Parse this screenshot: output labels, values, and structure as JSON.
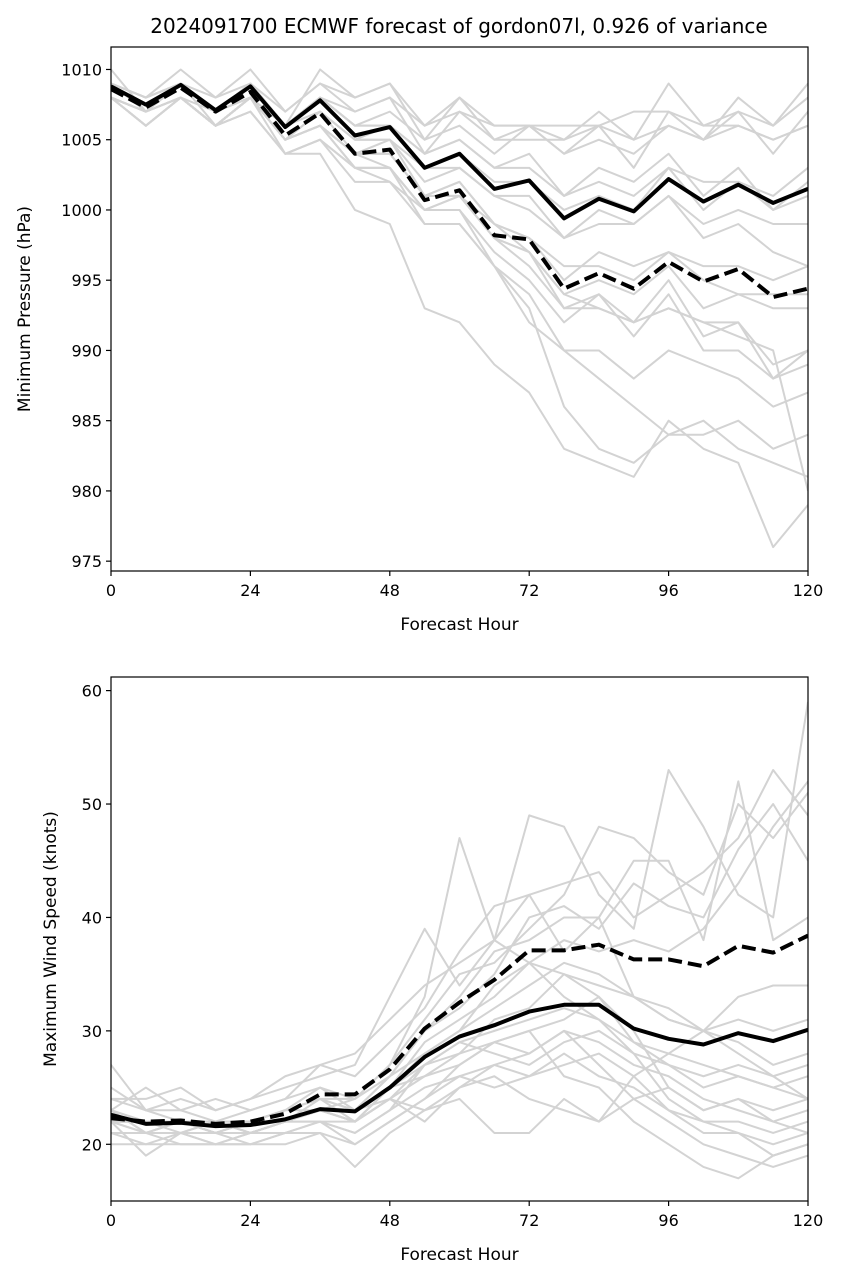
{
  "title": "2024091700 ECMWF forecast of gordon07l, 0.926 of variance",
  "colors": {
    "member": "#d3d3d3",
    "highlight": "#000000"
  },
  "chart_data": [
    {
      "type": "line",
      "panel": "top",
      "xlabel": "Forecast Hour",
      "ylabel": "Minimum Pressure (hPa)",
      "xlim": [
        0,
        120
      ],
      "ylim": [
        974.3,
        1011.6
      ],
      "xticks": [
        0,
        24,
        48,
        72,
        96,
        120
      ],
      "yticks": [
        975,
        980,
        985,
        990,
        995,
        1000,
        1005,
        1010
      ],
      "x": [
        0,
        6,
        12,
        18,
        24,
        30,
        36,
        42,
        48,
        54,
        60,
        66,
        72,
        78,
        84,
        90,
        96,
        102,
        108,
        114,
        120
      ],
      "highlight_series": [
        {
          "style": "solid",
          "values": [
            1008.8,
            1007.5,
            1008.9,
            1007.1,
            1008.8,
            1005.9,
            1007.8,
            1005.3,
            1005.9,
            1003.0,
            1004.0,
            1001.5,
            1002.1,
            999.4,
            1000.8,
            999.9,
            1002.2,
            1000.6,
            1001.8,
            1000.5,
            1001.5
          ]
        },
        {
          "style": "dashed",
          "values": [
            1008.6,
            1007.3,
            1008.7,
            1007.0,
            1008.4,
            1005.3,
            1006.9,
            1004.0,
            1004.3,
            1000.7,
            1001.4,
            998.2,
            997.9,
            994.4,
            995.5,
            994.4,
            996.3,
            994.9,
            995.8,
            993.8,
            994.4
          ]
        }
      ],
      "member_series": [
        [
          1010,
          1007,
          1009,
          1008,
          1010,
          1007,
          1009,
          1007,
          1008,
          1006,
          1007,
          1006,
          1006,
          1005,
          1006,
          1005,
          1006,
          1005,
          1006,
          1005,
          1006
        ],
        [
          1009,
          1008,
          1010,
          1008,
          1009,
          1007,
          1009,
          1008,
          1009,
          1006,
          1008,
          1006,
          1006,
          1006,
          1006,
          1007,
          1007,
          1006,
          1006,
          1005,
          1006
        ],
        [
          1009,
          1008,
          1009,
          1007,
          1009,
          1006,
          1010,
          1008,
          1009,
          1005,
          1008,
          1005,
          1006,
          1004,
          1005,
          1004,
          1006,
          1005,
          1007,
          1004,
          1007
        ],
        [
          1009,
          1008,
          1009,
          1007,
          1009,
          1006,
          1008,
          1007,
          1008,
          1004,
          1007,
          1005,
          1005,
          1005,
          1007,
          1005,
          1009,
          1006,
          1007,
          1006,
          1009
        ],
        [
          1009,
          1008,
          1009,
          1007,
          1009,
          1006,
          1008,
          1006,
          1007,
          1005,
          1006,
          1004,
          1006,
          1004,
          1006,
          1003,
          1007,
          1005,
          1008,
          1006,
          1008
        ],
        [
          1009,
          1007,
          1009,
          1007,
          1009,
          1006,
          1008,
          1006,
          1006,
          1004,
          1005,
          1003,
          1003,
          1001,
          1002,
          1001,
          1003,
          1002,
          1002,
          1001,
          1003
        ],
        [
          1008,
          1007,
          1009,
          1007,
          1008,
          1006,
          1008,
          1006,
          1006,
          1004,
          1005,
          1003,
          1004,
          1001,
          1003,
          1002,
          1004,
          1001,
          1003,
          1000,
          1002
        ],
        [
          1008,
          1007,
          1009,
          1006,
          1008,
          1005,
          1007,
          1005,
          1005,
          1003,
          1004,
          1002,
          1002,
          1000,
          1001,
          1000,
          1003,
          1000,
          1002,
          1000,
          1001
        ],
        [
          1009,
          1008,
          1009,
          1007,
          1008,
          1006,
          1007,
          1005,
          1005,
          1002,
          1003,
          1001,
          1001,
          998,
          1000,
          999,
          1001,
          998,
          999,
          997,
          996
        ],
        [
          1008,
          1007,
          1009,
          1007,
          1008,
          1006,
          1007,
          1005,
          1006,
          1003,
          1003,
          1001,
          1000,
          998,
          999,
          999,
          1001,
          999,
          1000,
          999,
          999
        ],
        [
          1008,
          1007,
          1008,
          1007,
          1008,
          1005,
          1007,
          1004,
          1005,
          1001,
          1002,
          999,
          998,
          995,
          997,
          996,
          997,
          996,
          996,
          995,
          996
        ],
        [
          1008,
          1007,
          1008,
          1006,
          1008,
          1005,
          1006,
          1004,
          1004,
          1001,
          1001,
          999,
          998,
          996,
          996,
          995,
          997,
          995,
          994,
          994,
          994
        ],
        [
          1008,
          1007,
          1008,
          1006,
          1008,
          1005,
          1006,
          1004,
          1003,
          1000,
          1001,
          998,
          997,
          994,
          995,
          994,
          996,
          993,
          994,
          993,
          993
        ],
        [
          1008,
          1007,
          1008,
          1006,
          1008,
          1005,
          1006,
          1003,
          1003,
          1000,
          1000,
          997,
          995,
          992,
          994,
          992,
          995,
          991,
          992,
          989,
          990
        ],
        [
          1008,
          1006,
          1008,
          1006,
          1007,
          1004,
          1005,
          1003,
          1003,
          999,
          999,
          996,
          994,
          990,
          990,
          988,
          990,
          989,
          988,
          986,
          987
        ],
        [
          1008,
          1006,
          1008,
          1006,
          1007,
          1004,
          1005,
          1003,
          1002,
          1000,
          1001,
          998,
          997,
          993,
          994,
          991,
          994,
          990,
          990,
          988,
          990
        ],
        [
          1008,
          1007,
          1008,
          1006,
          1008,
          1005,
          1006,
          1004,
          1004,
          1001,
          1002,
          999,
          997,
          994,
          993,
          992,
          993,
          992,
          992,
          988,
          989
        ],
        [
          1008,
          1007,
          1008,
          1006,
          1008,
          1005,
          1006,
          1003,
          1003,
          1000,
          1000,
          996,
          993,
          986,
          983,
          982,
          984,
          984,
          985,
          983,
          984
        ],
        [
          1008,
          1006,
          1008,
          1006,
          1008,
          1004,
          1004,
          1000,
          999,
          993,
          992,
          989,
          987,
          983,
          982,
          981,
          985,
          983,
          982,
          976,
          979
        ],
        [
          1008,
          1006,
          1008,
          1006,
          1007,
          1004,
          1005,
          1002,
          1002,
          999,
          999,
          996,
          992,
          990,
          988,
          986,
          984,
          985,
          983,
          982,
          981
        ],
        [
          1008,
          1007,
          1008,
          1006,
          1008,
          1005,
          1006,
          1004,
          1004,
          1001,
          1001,
          998,
          996,
          993,
          993,
          992,
          993,
          992,
          991,
          990,
          980
        ]
      ]
    },
    {
      "type": "line",
      "panel": "bottom",
      "xlabel": "Forecast Hour",
      "ylabel": "Maximum Wind Speed (knots)",
      "xlim": [
        0,
        120
      ],
      "ylim": [
        15,
        61.2
      ],
      "xticks": [
        0,
        24,
        48,
        72,
        96,
        120
      ],
      "yticks": [
        20,
        30,
        40,
        50,
        60
      ],
      "x": [
        0,
        6,
        12,
        18,
        24,
        30,
        36,
        42,
        48,
        54,
        60,
        66,
        72,
        78,
        84,
        90,
        96,
        102,
        108,
        114,
        120
      ],
      "highlight_series": [
        {
          "style": "solid",
          "values": [
            22.6,
            21.8,
            21.9,
            21.6,
            21.7,
            22.2,
            23.1,
            22.9,
            25.0,
            27.7,
            29.5,
            30.5,
            31.7,
            32.3,
            32.3,
            30.2,
            29.3,
            28.8,
            29.8,
            29.1,
            30.1
          ]
        },
        {
          "style": "dashed",
          "values": [
            22.3,
            22.0,
            22.1,
            21.8,
            22.0,
            22.7,
            24.4,
            24.4,
            26.6,
            30.2,
            32.5,
            34.5,
            37.1,
            37.1,
            37.6,
            36.3,
            36.3,
            35.7,
            37.5,
            36.9,
            38.4
          ]
        }
      ],
      "member_series": [
        [
          27,
          23,
          22,
          22,
          22,
          23,
          24,
          24,
          27,
          33,
          47,
          38,
          36,
          33,
          31,
          29,
          28,
          27,
          26,
          25,
          24
        ],
        [
          25,
          23,
          24,
          23,
          24,
          25,
          26,
          27,
          33,
          39,
          34,
          38,
          49,
          48,
          42,
          39,
          53,
          48,
          42,
          40,
          59
        ],
        [
          24,
          24,
          25,
          23,
          24,
          26,
          27,
          28,
          31,
          34,
          36,
          38,
          42,
          43,
          44,
          40,
          42,
          44,
          47,
          53,
          49
        ],
        [
          23,
          25,
          23,
          24,
          23,
          24,
          27,
          26,
          29,
          32,
          37,
          41,
          42,
          37,
          40,
          45,
          45,
          38,
          52,
          38,
          40
        ],
        [
          22,
          21,
          22,
          22,
          21,
          22,
          23,
          24,
          27,
          31,
          35,
          36,
          39,
          42,
          48,
          47,
          44,
          42,
          50,
          47,
          51
        ],
        [
          23,
          22,
          22,
          21,
          22,
          23,
          24,
          23,
          26,
          30,
          32,
          35,
          40,
          41,
          39,
          43,
          41,
          40,
          46,
          50,
          45
        ],
        [
          22,
          22,
          21,
          22,
          21,
          22,
          23,
          22,
          25,
          29,
          31,
          33,
          36,
          38,
          37,
          38,
          37,
          39,
          43,
          48,
          52
        ],
        [
          23,
          21,
          22,
          21,
          22,
          23,
          25,
          23,
          26,
          30,
          33,
          37,
          38,
          40,
          40,
          33,
          31,
          30,
          33,
          34,
          34
        ],
        [
          22,
          22,
          22,
          21,
          21,
          22,
          22,
          22,
          25,
          28,
          30,
          32,
          34,
          36,
          35,
          33,
          32,
          30,
          31,
          30,
          31
        ],
        [
          23,
          21,
          21,
          22,
          21,
          22,
          23,
          22,
          24,
          27,
          29,
          30,
          31,
          32,
          31,
          28,
          27,
          26,
          27,
          26,
          27
        ],
        [
          22,
          22,
          22,
          21,
          22,
          23,
          24,
          22,
          25,
          26,
          28,
          29,
          30,
          31,
          33,
          29,
          27,
          25,
          26,
          25,
          26
        ],
        [
          21,
          20,
          21,
          21,
          20,
          21,
          22,
          21,
          23,
          27,
          28,
          31,
          32,
          35,
          33,
          30,
          25,
          23,
          24,
          23,
          24
        ],
        [
          22,
          21,
          21,
          22,
          21,
          22,
          23,
          23,
          24,
          26,
          27,
          29,
          28,
          30,
          29,
          27,
          26,
          24,
          23,
          22,
          23
        ],
        [
          23,
          22,
          22,
          21,
          22,
          22,
          24,
          23,
          25,
          27,
          29,
          28,
          27,
          29,
          30,
          28,
          24,
          22,
          22,
          21,
          22
        ],
        [
          21,
          21,
          21,
          20,
          21,
          22,
          22,
          21,
          23,
          25,
          26,
          27,
          26,
          27,
          28,
          26,
          23,
          22,
          21,
          20,
          21
        ],
        [
          20,
          20,
          20,
          20,
          20,
          21,
          21,
          20,
          22,
          24,
          26,
          25,
          26,
          28,
          26,
          25,
          23,
          21,
          21,
          19,
          20
        ],
        [
          22,
          19,
          21,
          20,
          20,
          20,
          21,
          18,
          21,
          23,
          25,
          27,
          28,
          30,
          27,
          24,
          22,
          20,
          19,
          18,
          19
        ],
        [
          21,
          21,
          20,
          20,
          21,
          21,
          22,
          20,
          22,
          24,
          27,
          29,
          30,
          26,
          25,
          22,
          20,
          18,
          17,
          19,
          20
        ],
        [
          22,
          22,
          22,
          22,
          22,
          23,
          23,
          22,
          24,
          23,
          24,
          21,
          21,
          24,
          22,
          24,
          25,
          23,
          24,
          22,
          21
        ],
        [
          23,
          21,
          22,
          21,
          21,
          22,
          23,
          22,
          24,
          22,
          25,
          26,
          24,
          23,
          22,
          26,
          28,
          30,
          29,
          27,
          28
        ],
        [
          24,
          23,
          23,
          22,
          23,
          24,
          25,
          24,
          26,
          28,
          30,
          34,
          36,
          35,
          34,
          33,
          31,
          30,
          28,
          26,
          24
        ]
      ]
    }
  ]
}
